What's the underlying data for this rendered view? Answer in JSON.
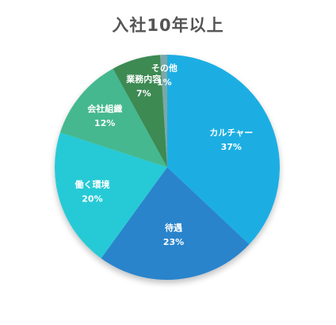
{
  "chart_data": {
    "type": "pie",
    "title": "入社10年以上",
    "slices": [
      {
        "label": "カルチャー",
        "value": 37,
        "pct_label": "37%",
        "color": "#1eaee3"
      },
      {
        "label": "待遇",
        "value": 23,
        "pct_label": "23%",
        "color": "#2a84cb"
      },
      {
        "label": "働く環境",
        "value": 20,
        "pct_label": "20%",
        "color": "#27cad6"
      },
      {
        "label": "会社組織",
        "value": 12,
        "pct_label": "12%",
        "color": "#44b890"
      },
      {
        "label": "業務内容",
        "value": 7,
        "pct_label": "7%",
        "color": "#3c8a53"
      },
      {
        "label": "その他",
        "value": 1,
        "pct_label": "1%",
        "color": "#7aa8a8"
      }
    ]
  }
}
